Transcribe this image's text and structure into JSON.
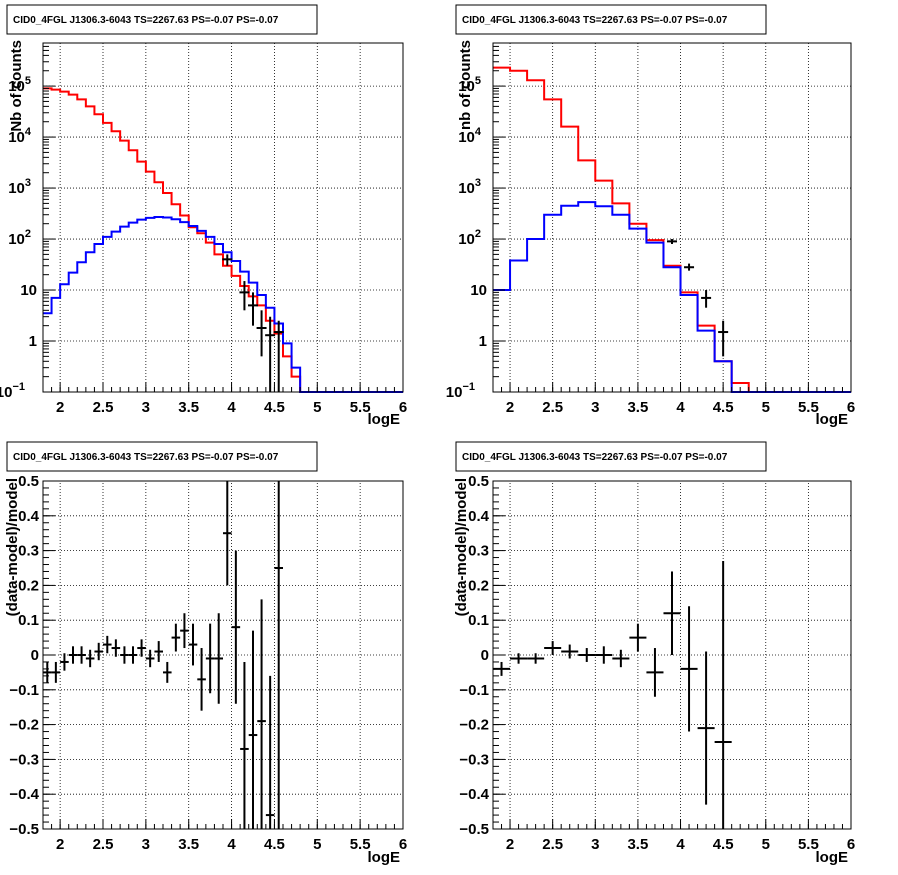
{
  "chart_data": [
    {
      "type": "line",
      "title": "CID0_4FGL J1306.3-6043 TS=2267.63 PS=-0.07 PS=-0.07",
      "xlabel": "logE",
      "ylabel": "Nb of counts",
      "xlim": [
        1.8,
        6.0
      ],
      "ylim": [
        0.1,
        700000
      ],
      "yscale": "log",
      "grid": true,
      "bins": {
        "start": 1.8,
        "width": 0.1
      },
      "xticks": [
        "2",
        "2.5",
        "3",
        "3.5",
        "4",
        "4.5",
        "5",
        "5.5",
        "6"
      ],
      "yticks": [
        {
          "v": 0.1,
          "b": "10",
          "e": "−1"
        },
        {
          "v": 1,
          "b": "1",
          "e": ""
        },
        {
          "v": 10,
          "b": "10",
          "e": ""
        },
        {
          "v": 100,
          "b": "10",
          "e": "2"
        },
        {
          "v": 1000,
          "b": "10",
          "e": "3"
        },
        {
          "v": 10000,
          "b": "10",
          "e": "4"
        },
        {
          "v": 100000,
          "b": "10",
          "e": "5"
        }
      ],
      "series": [
        {
          "color": "#ff0000",
          "values": [
            90000,
            85000,
            78000,
            68000,
            55000,
            40000,
            28000,
            19000,
            13000,
            8500,
            5500,
            3300,
            2100,
            1300,
            800,
            480,
            290,
            170,
            130,
            85,
            50,
            30,
            19,
            12,
            7.5,
            5,
            2.5,
            1.4,
            0.5,
            0.2,
            0.1,
            0.1,
            0.1,
            0.1,
            0.1,
            0.1,
            0.1,
            0.1,
            0.1,
            0.1,
            0.1,
            0.1
          ]
        },
        {
          "color": "#0000ff",
          "values": [
            3.5,
            7,
            13,
            22,
            35,
            55,
            80,
            110,
            140,
            175,
            210,
            240,
            260,
            270,
            265,
            245,
            215,
            180,
            145,
            110,
            80,
            55,
            37,
            23,
            14,
            8,
            4.5,
            2.2,
            0.9,
            0.3,
            0.1,
            0.1,
            0.1,
            0.1,
            0.1,
            0.1,
            0.1,
            0.1,
            0.1,
            0.1,
            0.1,
            0.1
          ]
        }
      ],
      "points": [
        {
          "x": 3.95,
          "y": 40,
          "ylo": 30,
          "yhi": 50
        },
        {
          "x": 4.15,
          "y": 9,
          "ylo": 4,
          "yhi": 15
        },
        {
          "x": 4.25,
          "y": 5,
          "ylo": 2,
          "yhi": 9
        },
        {
          "x": 4.35,
          "y": 1.8,
          "ylo": 0.5,
          "yhi": 4
        },
        {
          "x": 4.45,
          "y": 1.3,
          "ylo": 0.1,
          "yhi": 3
        },
        {
          "x": 4.55,
          "y": 1.5,
          "ylo": 0.1,
          "yhi": 2.5
        }
      ]
    },
    {
      "type": "line",
      "title": "CID0_4FGL J1306.3-6043 TS=2267.63 PS=-0.07 PS=-0.07",
      "xlabel": "logE",
      "ylabel": "nb of counts",
      "xlim": [
        1.8,
        6.0
      ],
      "ylim": [
        0.1,
        700000
      ],
      "yscale": "log",
      "grid": true,
      "bins": {
        "start": 1.8,
        "width": 0.2
      },
      "xticks": [
        "2",
        "2.5",
        "3",
        "3.5",
        "4",
        "4.5",
        "5",
        "5.5",
        "6"
      ],
      "yticks": [
        {
          "v": 0.1,
          "b": "10",
          "e": "−1"
        },
        {
          "v": 1,
          "b": "1",
          "e": ""
        },
        {
          "v": 10,
          "b": "10",
          "e": ""
        },
        {
          "v": 100,
          "b": "10",
          "e": "2"
        },
        {
          "v": 1000,
          "b": "10",
          "e": "3"
        },
        {
          "v": 10000,
          "b": "10",
          "e": "4"
        },
        {
          "v": 100000,
          "b": "10",
          "e": "5"
        }
      ],
      "series": [
        {
          "color": "#ff0000",
          "values": [
            230000,
            200000,
            130000,
            55000,
            16000,
            3500,
            1400,
            500,
            200,
            95,
            30,
            9,
            2,
            0.4,
            0.15,
            0.1,
            0.1,
            0.1,
            0.1,
            0.1,
            0.1
          ]
        },
        {
          "color": "#0000ff",
          "values": [
            10,
            38,
            100,
            300,
            450,
            530,
            440,
            300,
            160,
            85,
            28,
            8,
            1.6,
            0.4,
            0.1,
            0.1,
            0.1,
            0.1,
            0.1,
            0.1,
            0.1
          ]
        }
      ],
      "points": [
        {
          "x": 3.9,
          "y": 90,
          "ylo": 80,
          "yhi": 100
        },
        {
          "x": 4.1,
          "y": 28,
          "ylo": 24,
          "yhi": 33
        },
        {
          "x": 4.3,
          "y": 7,
          "ylo": 4.5,
          "yhi": 10
        },
        {
          "x": 4.5,
          "y": 1.5,
          "ylo": 0.5,
          "yhi": 2.5
        }
      ]
    },
    {
      "type": "scatter",
      "title": "CID0_4FGL J1306.3-6043 TS=2267.63 PS=-0.07 PS=-0.07",
      "xlabel": "logE",
      "ylabel": "(data-model)/model",
      "xlim": [
        1.8,
        6.0
      ],
      "ylim": [
        -0.5,
        0.5
      ],
      "grid": true,
      "xticks": [
        "2",
        "2.5",
        "3",
        "3.5",
        "4",
        "4.5",
        "5",
        "5.5",
        "6"
      ],
      "yticks": [
        "0.5",
        "0.4",
        "0.3",
        "0.2",
        "0.1",
        "0",
        "−0.1",
        "−0.2",
        "−0.3",
        "−0.4",
        "−0.5"
      ],
      "xerr": 0.05,
      "points": [
        {
          "x": 1.85,
          "y": -0.05,
          "err": 0.03
        },
        {
          "x": 1.95,
          "y": -0.05,
          "err": 0.03
        },
        {
          "x": 2.05,
          "y": -0.02,
          "err": 0.025
        },
        {
          "x": 2.15,
          "y": 0.0,
          "err": 0.025
        },
        {
          "x": 2.25,
          "y": 0.0,
          "err": 0.025
        },
        {
          "x": 2.35,
          "y": -0.01,
          "err": 0.025
        },
        {
          "x": 2.45,
          "y": 0.01,
          "err": 0.025
        },
        {
          "x": 2.55,
          "y": 0.03,
          "err": 0.025
        },
        {
          "x": 2.65,
          "y": 0.02,
          "err": 0.025
        },
        {
          "x": 2.75,
          "y": 0.0,
          "err": 0.025
        },
        {
          "x": 2.85,
          "y": 0.0,
          "err": 0.025
        },
        {
          "x": 2.95,
          "y": 0.02,
          "err": 0.025
        },
        {
          "x": 3.05,
          "y": -0.01,
          "err": 0.025
        },
        {
          "x": 3.15,
          "y": 0.01,
          "err": 0.03
        },
        {
          "x": 3.25,
          "y": -0.05,
          "err": 0.03
        },
        {
          "x": 3.35,
          "y": 0.05,
          "err": 0.04
        },
        {
          "x": 3.45,
          "y": 0.07,
          "err": 0.05
        },
        {
          "x": 3.55,
          "y": 0.03,
          "err": 0.06
        },
        {
          "x": 3.65,
          "y": -0.07,
          "err": 0.09
        },
        {
          "x": 3.75,
          "y": -0.01,
          "err": 0.1
        },
        {
          "x": 3.85,
          "y": -0.01,
          "err": 0.13
        },
        {
          "x": 3.95,
          "y": 0.35,
          "err": 0.15
        },
        {
          "x": 4.05,
          "y": 0.08,
          "err": 0.22
        },
        {
          "x": 4.15,
          "y": -0.27,
          "err": 0.25
        },
        {
          "x": 4.25,
          "y": -0.23,
          "err": 0.3
        },
        {
          "x": 4.35,
          "y": -0.19,
          "err": 0.35
        },
        {
          "x": 4.45,
          "y": -0.46,
          "err": 0.4
        },
        {
          "x": 4.55,
          "y": 0.25,
          "err": 0.75
        }
      ]
    },
    {
      "type": "scatter",
      "title": "CID0_4FGL J1306.3-6043 TS=2267.63 PS=-0.07 PS=-0.07",
      "xlabel": "logE",
      "ylabel": "(data-model)/model",
      "xlim": [
        1.8,
        6.0
      ],
      "ylim": [
        -0.5,
        0.5
      ],
      "grid": true,
      "xticks": [
        "2",
        "2.5",
        "3",
        "3.5",
        "4",
        "4.5",
        "5",
        "5.5",
        "6"
      ],
      "yticks": [
        "0.5",
        "0.4",
        "0.3",
        "0.2",
        "0.1",
        "0",
        "−0.1",
        "−0.2",
        "−0.3",
        "−0.4",
        "−0.5"
      ],
      "xerr": 0.1,
      "points": [
        {
          "x": 1.9,
          "y": -0.04,
          "err": 0.02
        },
        {
          "x": 2.1,
          "y": -0.01,
          "err": 0.015
        },
        {
          "x": 2.3,
          "y": -0.01,
          "err": 0.015
        },
        {
          "x": 2.5,
          "y": 0.02,
          "err": 0.02
        },
        {
          "x": 2.7,
          "y": 0.01,
          "err": 0.02
        },
        {
          "x": 2.9,
          "y": 0.0,
          "err": 0.02
        },
        {
          "x": 3.1,
          "y": 0.0,
          "err": 0.025
        },
        {
          "x": 3.3,
          "y": -0.01,
          "err": 0.025
        },
        {
          "x": 3.5,
          "y": 0.05,
          "err": 0.04
        },
        {
          "x": 3.7,
          "y": -0.05,
          "err": 0.07
        },
        {
          "x": 3.9,
          "y": 0.12,
          "err": 0.12
        },
        {
          "x": 4.1,
          "y": -0.04,
          "err": 0.18
        },
        {
          "x": 4.3,
          "y": -0.21,
          "err": 0.22
        },
        {
          "x": 4.5,
          "y": -0.25,
          "err": 0.52
        }
      ]
    }
  ]
}
